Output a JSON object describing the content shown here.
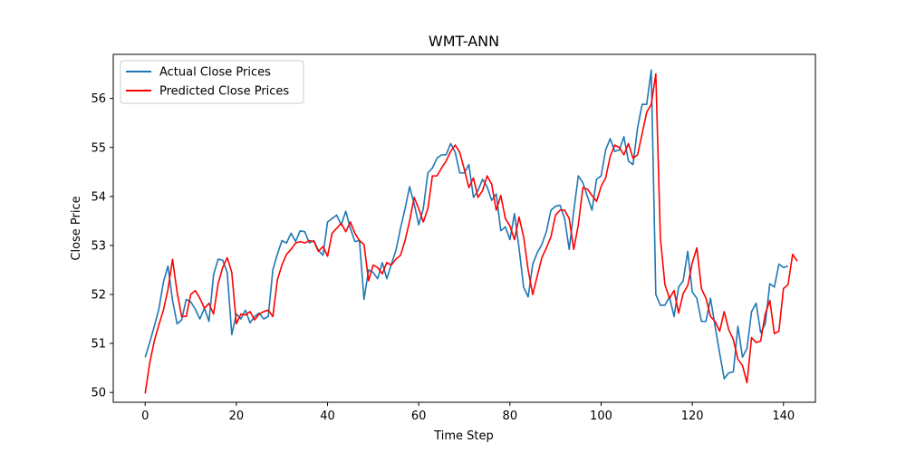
{
  "chart_data": {
    "type": "line",
    "title": "WMT-ANN",
    "xlabel": "Time Step",
    "ylabel": "Close Price",
    "xlim": [
      -7,
      147
    ],
    "ylim": [
      49.8,
      56.9
    ],
    "xticks": [
      0,
      20,
      40,
      60,
      80,
      100,
      120,
      140
    ],
    "yticks": [
      50,
      51,
      52,
      53,
      54,
      55,
      56
    ],
    "legend_position": "top-left",
    "grid": false,
    "series": [
      {
        "name": "Actual Close Prices",
        "color": "#1f77b4",
        "values": [
          50.72,
          51.02,
          51.35,
          51.7,
          52.25,
          52.58,
          51.88,
          51.4,
          51.48,
          51.9,
          51.85,
          51.7,
          51.5,
          51.72,
          51.45,
          52.4,
          52.72,
          52.7,
          52.45,
          51.18,
          51.6,
          51.5,
          51.68,
          51.42,
          51.55,
          51.62,
          51.5,
          51.55,
          52.5,
          52.82,
          53.1,
          53.05,
          53.25,
          53.08,
          53.3,
          53.28,
          53.05,
          53.1,
          52.9,
          52.8,
          53.48,
          53.55,
          53.62,
          53.42,
          53.7,
          53.35,
          53.08,
          53.1,
          51.9,
          52.5,
          52.45,
          52.32,
          52.65,
          52.32,
          52.62,
          52.9,
          53.35,
          53.75,
          54.2,
          53.85,
          53.42,
          53.75,
          54.48,
          54.58,
          54.78,
          54.85,
          54.85,
          55.08,
          54.9,
          54.48,
          54.48,
          54.65,
          53.98,
          54.12,
          54.35,
          54.2,
          53.92,
          54.05,
          53.3,
          53.38,
          53.12,
          53.65,
          52.95,
          52.15,
          51.95,
          52.62,
          52.85,
          53.02,
          53.28,
          53.72,
          53.8,
          53.82,
          53.55,
          52.92,
          53.7,
          54.42,
          54.28,
          54.0,
          53.72,
          54.35,
          54.42,
          54.95,
          55.18,
          54.92,
          54.95,
          55.22,
          54.72,
          54.65,
          55.4,
          55.88,
          55.88,
          56.58,
          52.0,
          51.78,
          51.78,
          51.95,
          51.55,
          52.15,
          52.28,
          52.88,
          52.05,
          51.92,
          51.45,
          51.45,
          51.92,
          51.35,
          50.8,
          50.28,
          50.4,
          50.42,
          51.35,
          50.72,
          50.9,
          51.65,
          51.82,
          51.22,
          51.4,
          52.22,
          52.15,
          52.62,
          52.55,
          52.58
        ]
      },
      {
        "name": "Predicted Close Prices",
        "color": "#ff0000",
        "values": [
          49.98,
          50.6,
          51.05,
          51.38,
          51.68,
          52.1,
          52.72,
          52.05,
          51.55,
          51.55,
          52.0,
          52.08,
          51.92,
          51.72,
          51.82,
          51.6,
          52.22,
          52.55,
          52.75,
          52.45,
          51.4,
          51.6,
          51.58,
          51.65,
          51.48,
          51.6,
          51.65,
          51.68,
          51.55,
          52.3,
          52.6,
          52.82,
          52.92,
          53.05,
          53.08,
          53.05,
          53.1,
          53.08,
          52.88,
          52.98,
          52.78,
          53.25,
          53.35,
          53.45,
          53.28,
          53.48,
          53.25,
          53.1,
          53.02,
          52.28,
          52.6,
          52.55,
          52.42,
          52.65,
          52.6,
          52.72,
          52.8,
          53.1,
          53.5,
          53.98,
          53.75,
          53.48,
          53.75,
          54.42,
          54.42,
          54.58,
          54.72,
          54.92,
          55.05,
          54.9,
          54.55,
          54.18,
          54.38,
          53.98,
          54.12,
          54.42,
          54.25,
          53.72,
          54.02,
          53.55,
          53.4,
          53.12,
          53.58,
          53.18,
          52.5,
          52.0,
          52.38,
          52.75,
          52.95,
          53.18,
          53.62,
          53.72,
          53.72,
          53.55,
          52.92,
          53.42,
          54.18,
          54.15,
          54.02,
          53.9,
          54.2,
          54.38,
          54.82,
          55.05,
          55.0,
          54.85,
          55.08,
          54.78,
          54.85,
          55.28,
          55.72,
          55.88,
          56.5,
          53.15,
          52.2,
          51.92,
          52.08,
          51.62,
          52.02,
          52.18,
          52.65,
          52.95,
          52.12,
          51.92,
          51.55,
          51.45,
          51.25,
          51.65,
          51.28,
          51.08,
          50.68,
          50.55,
          50.2,
          51.12,
          51.02,
          51.05,
          51.6,
          51.88,
          51.2,
          51.25,
          52.12,
          52.2,
          52.82,
          52.68
        ]
      }
    ]
  }
}
